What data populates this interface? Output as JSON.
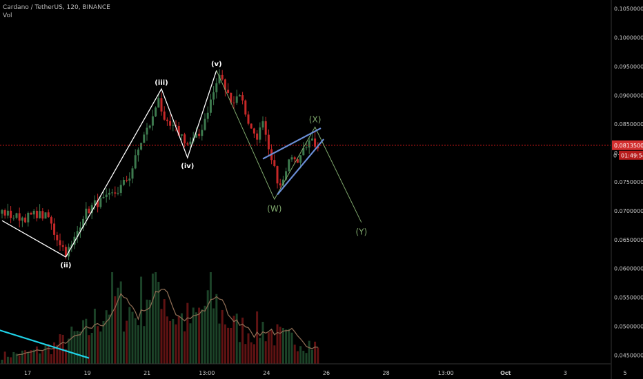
{
  "header": {
    "symbol_line": "Cardano / TetherUS, 120, BINANCE",
    "volume_label": "Vol"
  },
  "price_tag": {
    "price": "0.08135000",
    "countdown": "01:49:54",
    "axis_char": "0"
  },
  "colors": {
    "background": "#000000",
    "up": "#3d7a4e",
    "down": "#c62828",
    "wave_line": "#ffffff",
    "alt_wave_line": "#7fa86c",
    "channel": "#6b8ed6",
    "trend": "#1fd3e8",
    "price_line": "#e21b1b",
    "vol_ma": "#8a6a52"
  },
  "chart_data": {
    "type": "candlestick",
    "title": "Cardano / TetherUS, 120, BINANCE",
    "price_axis": {
      "ticks": [
        "0.10500000",
        "0.10000000",
        "0.09500000",
        "0.09000000",
        "0.08500000",
        "0.08000000",
        "0.07500000",
        "0.07000000",
        "0.06500000",
        "0.06000000",
        "0.05500000",
        "0.05000000",
        "0.04500000"
      ],
      "ylim": [
        0.0435,
        0.1065
      ]
    },
    "time_axis": {
      "ticks": [
        "17",
        "19",
        "21",
        "13:00",
        "24",
        "26",
        "28",
        "13:00",
        "Oct",
        "3",
        "5",
        "13:00"
      ],
      "bold": [
        "Oct"
      ]
    },
    "last_price": 0.08135,
    "candle_count": 110,
    "candle_close_anchors": [
      [
        0,
        0.0698
      ],
      [
        4,
        0.069
      ],
      [
        8,
        0.0688
      ],
      [
        12,
        0.0695
      ],
      [
        16,
        0.0688
      ],
      [
        18,
        0.0662
      ],
      [
        22,
        0.0628
      ],
      [
        24,
        0.0638
      ],
      [
        28,
        0.0692
      ],
      [
        32,
        0.0712
      ],
      [
        36,
        0.072
      ],
      [
        40,
        0.0735
      ],
      [
        44,
        0.076
      ],
      [
        48,
        0.082
      ],
      [
        52,
        0.086
      ],
      [
        54,
        0.09
      ],
      [
        56,
        0.085
      ],
      [
        58,
        0.0845
      ],
      [
        60,
        0.084
      ],
      [
        62,
        0.083
      ],
      [
        64,
        0.0815
      ],
      [
        68,
        0.083
      ],
      [
        72,
        0.089
      ],
      [
        75,
        0.0935
      ],
      [
        78,
        0.09
      ],
      [
        80,
        0.089
      ],
      [
        82,
        0.0905
      ],
      [
        84,
        0.087
      ],
      [
        86,
        0.084
      ],
      [
        88,
        0.083
      ],
      [
        90,
        0.085
      ],
      [
        92,
        0.08
      ],
      [
        94,
        0.077
      ],
      [
        96,
        0.074
      ],
      [
        98,
        0.0765
      ],
      [
        100,
        0.08
      ],
      [
        102,
        0.079
      ],
      [
        104,
        0.0815
      ],
      [
        106,
        0.082
      ],
      [
        109,
        0.0814
      ]
    ],
    "volume_scale_max": 100,
    "volume_anchors": [
      [
        0,
        10
      ],
      [
        10,
        14
      ],
      [
        18,
        22
      ],
      [
        26,
        35
      ],
      [
        30,
        40
      ],
      [
        34,
        60
      ],
      [
        38,
        80
      ],
      [
        42,
        70
      ],
      [
        46,
        60
      ],
      [
        50,
        90
      ],
      [
        55,
        100
      ],
      [
        58,
        60
      ],
      [
        62,
        55
      ],
      [
        66,
        50
      ],
      [
        72,
        80
      ],
      [
        76,
        60
      ],
      [
        80,
        45
      ],
      [
        86,
        40
      ],
      [
        90,
        45
      ],
      [
        94,
        35
      ],
      [
        98,
        30
      ],
      [
        102,
        30
      ],
      [
        106,
        25
      ],
      [
        109,
        20
      ]
    ],
    "elliott_waves": {
      "impulse": [
        {
          "label": "",
          "i": 0,
          "price": 0.0683
        },
        {
          "label": "(ii)",
          "i": 22,
          "price": 0.062
        },
        {
          "label": "(iii)",
          "i": 55,
          "price": 0.0911
        },
        {
          "label": "(iv)",
          "i": 64,
          "price": 0.0792
        },
        {
          "label": "(v)",
          "i": 74,
          "price": 0.0943
        }
      ],
      "corrective": [
        {
          "label": "",
          "i": 74,
          "price": 0.0943
        },
        {
          "label": "(W)",
          "i": 94,
          "price": 0.072
        },
        {
          "label": "(X)",
          "i": 108,
          "price": 0.0845
        },
        {
          "label": "(Y)",
          "i": 124,
          "price": 0.068
        }
      ]
    },
    "channel": {
      "upper": [
        [
          90,
          0.079
        ],
        [
          110,
          0.0843
        ]
      ],
      "lower": [
        [
          95,
          0.0728
        ],
        [
          111,
          0.0824
        ]
      ]
    },
    "trend_line": {
      "from_price": 0.0495,
      "to_price": 0.0445,
      "from_i": -2,
      "to_i": 30
    }
  }
}
